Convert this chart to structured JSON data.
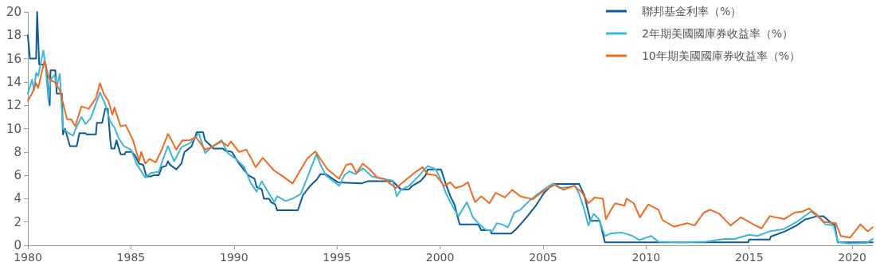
{
  "chart_data": {
    "type": "line",
    "xlim": [
      1980,
      2021
    ],
    "xticks": [
      1980,
      1985,
      1990,
      1995,
      2000,
      2005,
      2010,
      2015,
      2020
    ],
    "ylim": [
      0,
      20
    ],
    "yticks": [
      0,
      2,
      4,
      6,
      8,
      10,
      12,
      14,
      16,
      18,
      20
    ],
    "grid": false,
    "legend": "top right",
    "marker": "none",
    "line_style": "solid",
    "series": [
      {
        "name": "聯邦基金利率（%）",
        "color": "#0e5a96",
        "x": [
          1980.0,
          1980.1,
          1980.4,
          1980.45,
          1980.55,
          1980.87,
          1981.06,
          1981.1,
          1981.33,
          1981.4,
          1981.65,
          1981.7,
          1981.8,
          1982.04,
          1982.37,
          1982.5,
          1982.8,
          1982.85,
          1983.3,
          1983.35,
          1983.6,
          1983.75,
          1983.88,
          1984.0,
          1984.05,
          1984.2,
          1984.3,
          1984.5,
          1984.7,
          1984.75,
          1985.05,
          1985.2,
          1985.4,
          1985.6,
          1985.75,
          1985.95,
          1986.1,
          1986.35,
          1986.5,
          1986.7,
          1986.8,
          1986.9,
          1987.2,
          1987.45,
          1987.6,
          1987.75,
          1987.95,
          1988.2,
          1988.5,
          1988.6,
          1988.9,
          1989.0,
          1989.45,
          1989.6,
          1989.9,
          1990.25,
          1990.7,
          1991.0,
          1991.1,
          1991.35,
          1991.45,
          1991.7,
          1991.8,
          1992.0,
          1992.1,
          1993.1,
          1993.35,
          1993.7,
          1994.0,
          1994.2,
          1994.45,
          1995.05,
          1996.2,
          1996.5,
          1997.7,
          1998.1,
          1998.5,
          1998.65,
          1999.05,
          1999.3,
          1999.4,
          2000.05,
          2000.25,
          2000.5,
          2000.7,
          2000.95,
          2001.85,
          2002.0,
          2002.45,
          2002.5,
          2003.45,
          2003.7,
          2004.15,
          2004.65,
          2005.05,
          2005.5,
          2006.75,
          2007.0,
          2007.3,
          2007.75,
          2008.0,
          2014.95,
          2015.0,
          2016.0,
          2016.05,
          2016.75,
          2017.3,
          2017.7,
          2018.1,
          2018.3,
          2018.6,
          2019.0,
          2019.15,
          2019.3,
          2021.0
        ],
        "values": [
          18,
          16,
          16,
          20,
          15.5,
          15.5,
          12,
          15,
          15,
          13,
          13,
          9.5,
          10,
          8.5,
          8.5,
          9.6,
          9.6,
          9.5,
          9.5,
          10.5,
          10.5,
          11.7,
          11.7,
          9,
          8.3,
          8.3,
          9,
          7.8,
          7.8,
          8,
          8,
          7.7,
          7,
          6.9,
          5.9,
          5.9,
          6,
          6,
          6.7,
          6.8,
          7.2,
          6.9,
          6.5,
          7,
          8,
          8.2,
          8.5,
          9.7,
          9.7,
          9,
          8.5,
          8.3,
          8.3,
          8.1,
          8,
          7,
          6,
          5.7,
          5,
          4.8,
          4,
          4,
          3.7,
          3.5,
          3,
          3,
          4.3,
          5.1,
          5.6,
          6.1,
          6.1,
          5.4,
          5.3,
          5.5,
          5.5,
          4.8,
          4.8,
          5.1,
          5.5,
          6,
          6.5,
          6.5,
          5.4,
          4.2,
          3.5,
          1.8,
          1.8,
          1.3,
          1.3,
          1,
          1,
          1.4,
          2.3,
          3.4,
          4.5,
          5.25,
          5.25,
          4.3,
          2.1,
          2.1,
          0.25,
          0.25,
          0.5,
          0.5,
          0.75,
          1.2,
          1.7,
          2.2,
          2.4,
          2.5,
          2.5,
          1.9,
          1.75,
          0.25,
          0.25
        ]
      },
      {
        "name": "2年期美國國庫券收益率（%）",
        "color": "#3db6d6",
        "x": [
          1980.0,
          1980.2,
          1980.3,
          1980.4,
          1980.5,
          1980.75,
          1980.85,
          1981.0,
          1981.1,
          1981.3,
          1981.4,
          1981.55,
          1981.7,
          1981.9,
          1982.2,
          1982.3,
          1982.6,
          1982.8,
          1983.05,
          1983.5,
          1983.75,
          1984.0,
          1984.2,
          1984.4,
          1984.65,
          1985.0,
          1985.3,
          1985.7,
          1985.95,
          1986.35,
          1986.6,
          1986.8,
          1987.1,
          1987.45,
          1987.9,
          1988.3,
          1988.6,
          1988.9,
          1989.4,
          1989.7,
          1990.1,
          1990.5,
          1990.8,
          1991.1,
          1991.35,
          1991.95,
          1992.1,
          1992.5,
          1992.85,
          1993.24,
          1993.6,
          1994.0,
          1994.2,
          1994.46,
          1995.1,
          1995.36,
          1995.6,
          1995.9,
          1996.25,
          1996.7,
          1997.2,
          1997.7,
          1997.9,
          1998.1,
          1998.5,
          1999.05,
          1999.4,
          1999.8,
          2000.05,
          2000.3,
          2000.7,
          2000.9,
          2001.3,
          2001.6,
          2001.9,
          2002.2,
          2002.55,
          2002.75,
          2003.0,
          2003.3,
          2003.6,
          2003.9,
          2004.35,
          2004.75,
          2005.2,
          2005.5,
          2005.8,
          2006.25,
          2006.55,
          2006.75,
          2007.0,
          2007.2,
          2007.45,
          2007.7,
          2008.0,
          2008.26,
          2008.78,
          2009.0,
          2009.35,
          2009.67,
          2010.25,
          2010.6,
          2011.6,
          2012.9,
          2013.8,
          2014.3,
          2015.0,
          2015.4,
          2016.0,
          2016.7,
          2017.3,
          2018.0,
          2018.3,
          2018.7,
          2019.1,
          2019.3,
          2019.8,
          2020.7,
          2021.0
        ],
        "values": [
          13,
          14.2,
          13.3,
          14.8,
          14.5,
          16.7,
          15.5,
          12.4,
          14.2,
          14.6,
          13.6,
          14.7,
          10,
          9.7,
          9.4,
          9.9,
          11,
          10.4,
          10.9,
          13.1,
          12.1,
          10.6,
          10.1,
          9.2,
          8.5,
          8.2,
          6.9,
          5.8,
          6.2,
          6.3,
          7.6,
          8.5,
          7.2,
          8.4,
          8.8,
          9.6,
          7.9,
          8.4,
          9,
          7.9,
          7.4,
          6.7,
          5.4,
          4.6,
          5.5,
          3.7,
          4.2,
          3.8,
          4,
          4.4,
          6,
          7.8,
          6.9,
          6,
          5.1,
          6,
          6.35,
          6.1,
          6.6,
          5.9,
          5.7,
          5.55,
          4.2,
          4.75,
          5.1,
          6.1,
          6.8,
          6.5,
          5.55,
          4.4,
          3.05,
          2.5,
          3.7,
          2.4,
          1.8,
          1.35,
          1.25,
          1.9,
          1.8,
          1.55,
          2.8,
          3.05,
          3.85,
          4.4,
          5,
          5.3,
          4.9,
          5,
          5.1,
          4.4,
          3.05,
          1.7,
          2.7,
          2.25,
          0.8,
          1,
          1.1,
          1,
          0.8,
          0.45,
          0.8,
          0.3,
          0.25,
          0.3,
          0.55,
          0.55,
          0.9,
          0.8,
          1.2,
          1.4,
          2,
          2.9,
          2.5,
          1.8,
          1.7,
          0.3,
          0.15,
          0.2,
          0.55
        ]
      },
      {
        "name": "10年期美國國庫券收益率（%）",
        "color": "#f06a22",
        "x": [
          1980.0,
          1980.2,
          1980.4,
          1980.5,
          1980.8,
          1981.05,
          1981.3,
          1981.55,
          1981.9,
          1982.1,
          1982.3,
          1982.6,
          1982.95,
          1983.3,
          1983.5,
          1983.7,
          1983.9,
          1984.1,
          1984.2,
          1984.5,
          1984.75,
          1985.1,
          1985.4,
          1985.5,
          1985.7,
          1985.9,
          1986.2,
          1986.5,
          1986.8,
          1987.0,
          1987.2,
          1987.5,
          1987.85,
          1988.15,
          1988.6,
          1988.9,
          1989.4,
          1989.7,
          1989.85,
          1990.25,
          1990.6,
          1990.85,
          1991.05,
          1991.4,
          1991.95,
          1992.3,
          1992.85,
          1993.24,
          1993.55,
          1993.95,
          1994.25,
          1994.55,
          1995.1,
          1995.45,
          1995.7,
          1995.95,
          1996.25,
          1996.6,
          1996.95,
          1997.3,
          1997.85,
          1998.4,
          1998.75,
          1999.15,
          1999.4,
          1999.8,
          2000.2,
          2000.5,
          2000.75,
          2001.1,
          2001.35,
          2001.7,
          2002.0,
          2002.4,
          2002.7,
          2003.15,
          2003.5,
          2003.9,
          2004.5,
          2004.9,
          2005.35,
          2005.6,
          2006.0,
          2006.5,
          2006.9,
          2007.2,
          2007.5,
          2007.9,
          2008.05,
          2008.3,
          2008.5,
          2008.95,
          2009.05,
          2009.4,
          2009.7,
          2010.1,
          2010.6,
          2010.8,
          2011.35,
          2012.0,
          2012.35,
          2012.8,
          2013.1,
          2013.55,
          2014.1,
          2014.6,
          2015.2,
          2015.6,
          2016.0,
          2016.7,
          2017.2,
          2017.6,
          2017.9,
          2018.3,
          2018.65,
          2019.2,
          2019.45,
          2019.9,
          2020.4,
          2020.75,
          2021.0
        ],
        "values": [
          12.4,
          13,
          13.9,
          13.5,
          15.8,
          14.2,
          14,
          13.3,
          10.8,
          10.8,
          10.2,
          11.9,
          11.7,
          12.6,
          13.9,
          12.9,
          12.4,
          11.2,
          11.8,
          10.2,
          10.3,
          9,
          7.2,
          8,
          7,
          7.4,
          7.1,
          8.2,
          9.55,
          8.9,
          8.2,
          9,
          9,
          9.3,
          8.2,
          8.4,
          8.9,
          8.5,
          8.9,
          8,
          8.2,
          7.4,
          6.7,
          7.5,
          6.4,
          6,
          5.3,
          6.5,
          7.4,
          8.05,
          7.25,
          6.5,
          5.7,
          6.9,
          7,
          6.2,
          7,
          6.5,
          5.8,
          5.7,
          4.9,
          5.7,
          6.2,
          6.7,
          6.1,
          6,
          5.1,
          5.4,
          4.9,
          5.1,
          5.4,
          3.7,
          4.2,
          3.6,
          4.5,
          4.1,
          4.75,
          4.2,
          3.95,
          4.5,
          5,
          5.2,
          4.75,
          5.1,
          4.5,
          3.6,
          4.1,
          4,
          2.25,
          3.05,
          3.6,
          3.4,
          4,
          3.6,
          2.4,
          3.5,
          3.05,
          2.15,
          1.6,
          1.9,
          1.7,
          2.8,
          3.05,
          2.7,
          1.7,
          2.4,
          1.8,
          1.45,
          2.5,
          2.25,
          2.8,
          2.9,
          3.15,
          2.6,
          2,
          1.9,
          0.8,
          0.65,
          1.8,
          1.2,
          1.55
        ]
      }
    ]
  }
}
